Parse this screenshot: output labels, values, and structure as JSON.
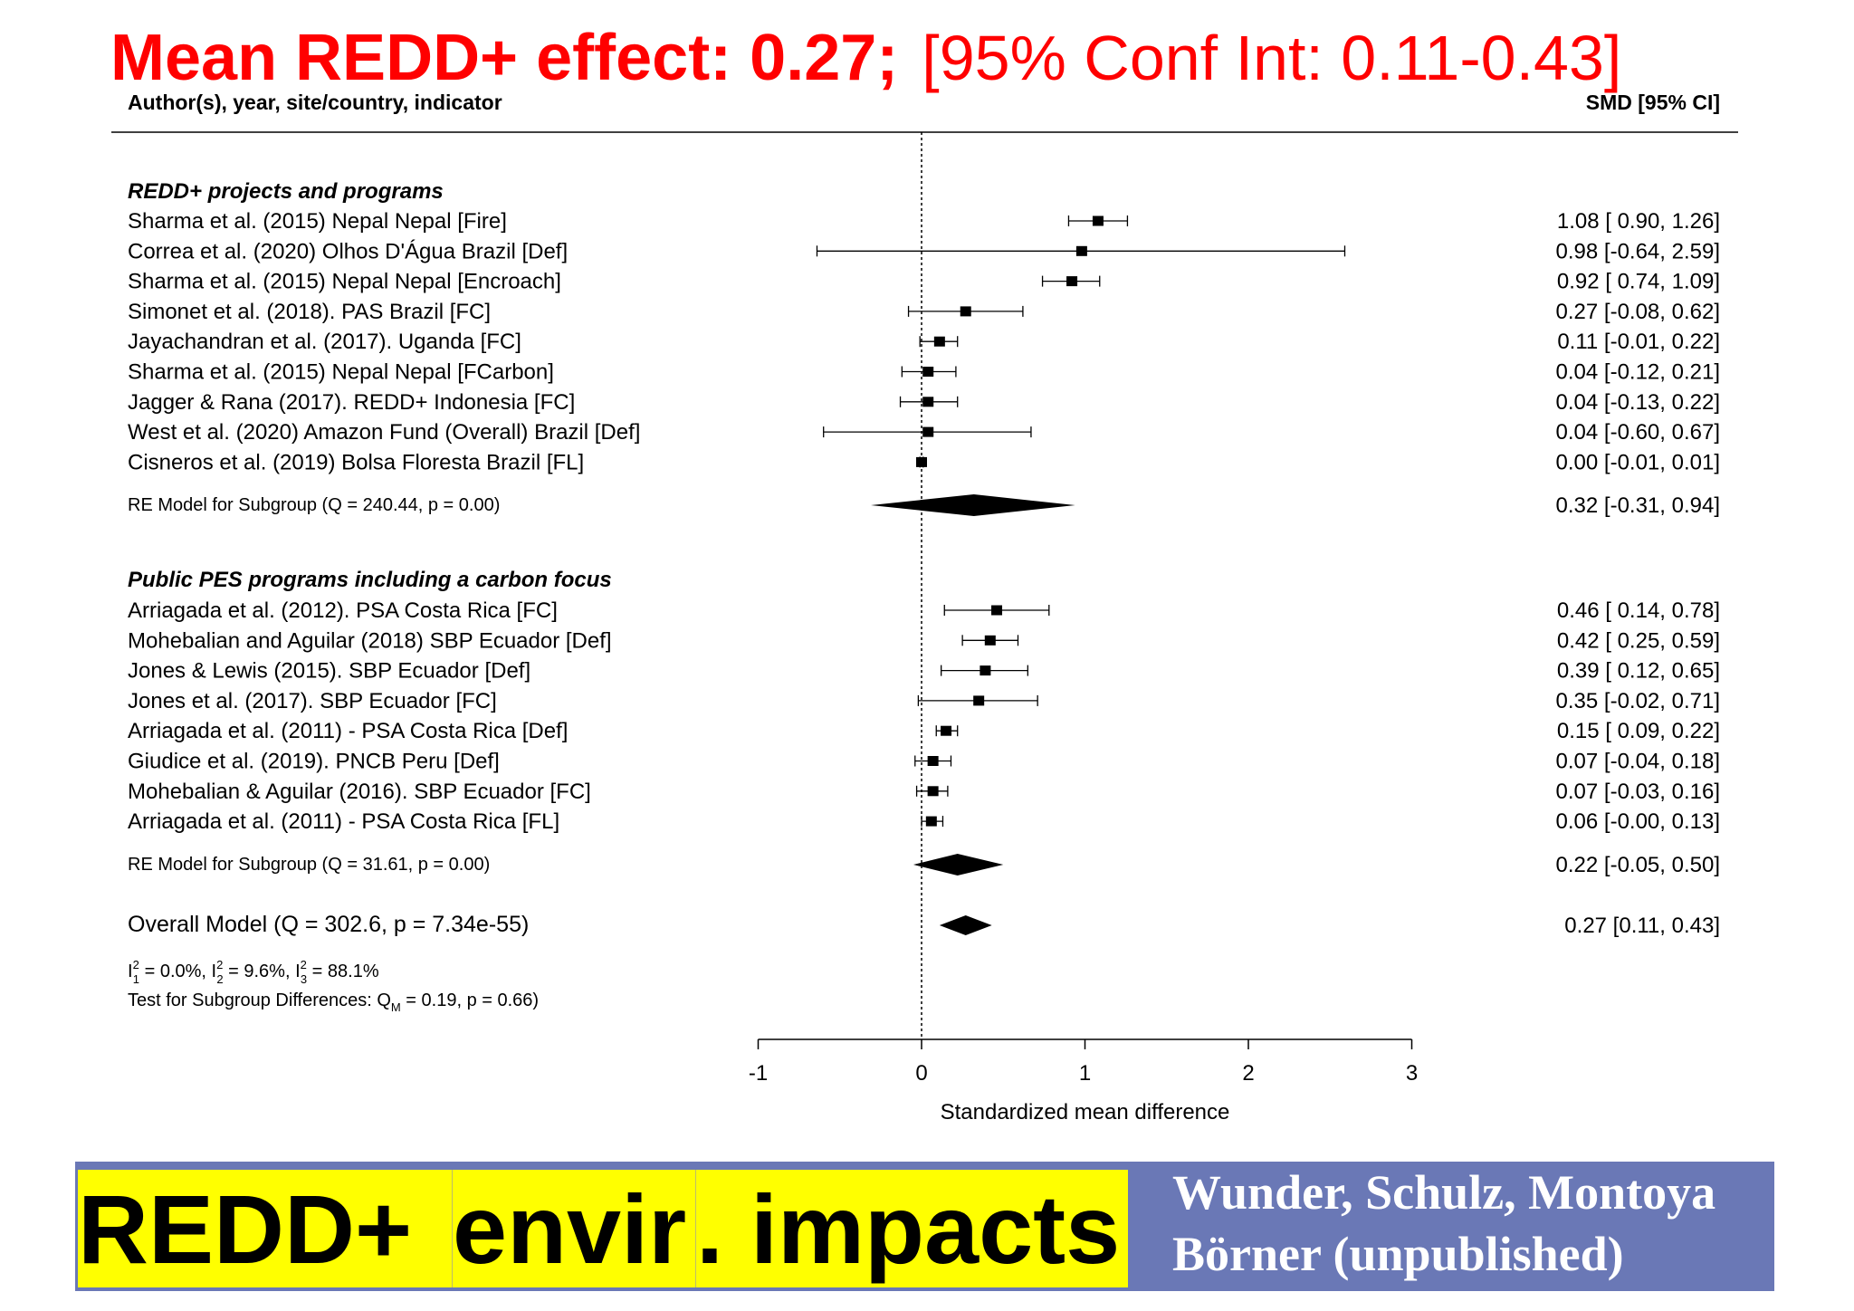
{
  "headline": {
    "bold_text": "Mean REDD+ effect: 0.27;",
    "ci_text": "[95% Conf Int: 0.11-0.43]"
  },
  "colors": {
    "headline": "#ff0000",
    "band": "#6a78b6",
    "highlight": "#ffff00",
    "authors_text": "#ffffff"
  },
  "footer": {
    "title_segments": [
      "REDD+ ",
      "envir",
      ". impacts"
    ],
    "authors_line1": "Wunder, Schulz, Montoya",
    "authors_line2": "Börner (unpublished)"
  },
  "chart_data": {
    "type": "forest",
    "left_header": "Author(s), year, site/country, indicator",
    "right_header": "SMD [95% CI]",
    "xlabel": "Standardized mean difference",
    "xlim": [
      -1,
      3
    ],
    "xticks": [
      -1,
      0,
      1,
      2,
      3
    ],
    "reference_line": 0,
    "groups": [
      {
        "title": "REDD+ projects and programs",
        "studies": [
          {
            "label": "Sharma et al. (2015) Nepal Nepal [Fire]",
            "est": 1.08,
            "lo": 0.9,
            "hi": 1.26,
            "text": "1.08 [ 0.90, 1.26]"
          },
          {
            "label": "Correa et al. (2020) Olhos D'Água Brazil [Def]",
            "est": 0.98,
            "lo": -0.64,
            "hi": 2.59,
            "text": "0.98 [-0.64, 2.59]"
          },
          {
            "label": "Sharma et al. (2015) Nepal Nepal [Encroach]",
            "est": 0.92,
            "lo": 0.74,
            "hi": 1.09,
            "text": "0.92 [ 0.74, 1.09]"
          },
          {
            "label": "Simonet et al. (2018). PAS Brazil [FC]",
            "est": 0.27,
            "lo": -0.08,
            "hi": 0.62,
            "text": "0.27 [-0.08, 0.62]"
          },
          {
            "label": "Jayachandran et al. (2017). Uganda [FC]",
            "est": 0.11,
            "lo": -0.01,
            "hi": 0.22,
            "text": "0.11 [-0.01, 0.22]"
          },
          {
            "label": "Sharma et al. (2015) Nepal Nepal [FCarbon]",
            "est": 0.04,
            "lo": -0.12,
            "hi": 0.21,
            "text": "0.04 [-0.12, 0.21]"
          },
          {
            "label": "Jagger & Rana (2017). REDD+ Indonesia [FC]",
            "est": 0.04,
            "lo": -0.13,
            "hi": 0.22,
            "text": "0.04 [-0.13, 0.22]"
          },
          {
            "label": "West et al. (2020) Amazon Fund (Overall) Brazil [Def]",
            "est": 0.04,
            "lo": -0.6,
            "hi": 0.67,
            "text": "0.04 [-0.60, 0.67]"
          },
          {
            "label": "Cisneros et al. (2019) Bolsa Floresta Brazil [FL]",
            "est": 0.0,
            "lo": -0.01,
            "hi": 0.01,
            "text": "0.00 [-0.01, 0.01]"
          }
        ],
        "summary": {
          "label": "RE Model for Subgroup (Q = 240.44, p = 0.00)",
          "est": 0.32,
          "lo": -0.31,
          "hi": 0.94,
          "text": "0.32 [-0.31, 0.94]"
        }
      },
      {
        "title": "Public PES programs including a carbon focus",
        "studies": [
          {
            "label": "Arriagada et al. (2012). PSA Costa Rica [FC]",
            "est": 0.46,
            "lo": 0.14,
            "hi": 0.78,
            "text": "0.46 [ 0.14, 0.78]"
          },
          {
            "label": "Mohebalian and Aguilar (2018) SBP Ecuador [Def]",
            "est": 0.42,
            "lo": 0.25,
            "hi": 0.59,
            "text": "0.42 [ 0.25, 0.59]"
          },
          {
            "label": "Jones & Lewis (2015). SBP Ecuador [Def]",
            "est": 0.39,
            "lo": 0.12,
            "hi": 0.65,
            "text": "0.39 [ 0.12, 0.65]"
          },
          {
            "label": "Jones et al. (2017). SBP Ecuador [FC]",
            "est": 0.35,
            "lo": -0.02,
            "hi": 0.71,
            "text": "0.35 [-0.02, 0.71]"
          },
          {
            "label": "Arriagada et al. (2011) - PSA Costa Rica [Def]",
            "est": 0.15,
            "lo": 0.09,
            "hi": 0.22,
            "text": "0.15 [ 0.09, 0.22]"
          },
          {
            "label": "Giudice et al. (2019). PNCB Peru [Def]",
            "est": 0.07,
            "lo": -0.04,
            "hi": 0.18,
            "text": "0.07 [-0.04, 0.18]"
          },
          {
            "label": "Mohebalian & Aguilar (2016). SBP Ecuador [FC]",
            "est": 0.07,
            "lo": -0.03,
            "hi": 0.16,
            "text": "0.07 [-0.03, 0.16]"
          },
          {
            "label": "Arriagada et al. (2011) - PSA Costa Rica [FL]",
            "est": 0.06,
            "lo": -0.0,
            "hi": 0.13,
            "text": "0.06 [-0.00, 0.13]"
          }
        ],
        "summary": {
          "label": "RE Model for Subgroup (Q = 31.61, p = 0.00)",
          "est": 0.22,
          "lo": -0.05,
          "hi": 0.5,
          "text": "0.22 [-0.05, 0.50]"
        }
      }
    ],
    "overall": {
      "label": "Overall Model (Q = 302.6, p = 7.34e-55)",
      "est": 0.27,
      "lo": 0.11,
      "hi": 0.43,
      "text": "0.27 [0.11, 0.43]"
    },
    "heterogeneity": {
      "i1": "0.0%",
      "i2": "9.6%",
      "i3": "88.1%"
    },
    "subgroup_test": {
      "qm": "0.19",
      "p": "0.66"
    }
  }
}
